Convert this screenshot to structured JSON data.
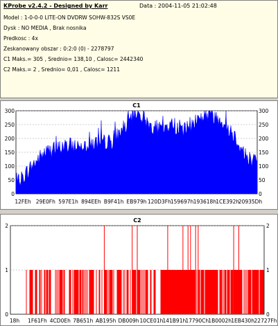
{
  "info": {
    "title": "KProbe v2.4.2 - Designed by Karr",
    "date": "Data : 2004-11-05 21:02:48",
    "lines": [
      "Model : 1-0-0-0 LITE-ON DVDRW SOHW-832S  VS0E",
      "Dysk : NO MEDIA , Brak nosnika",
      "Predkosc : 4x",
      "Zeskanowany obszar : 0:2:0 (0) - 2278797",
      "C1 Maks.= 305 , Srednio= 138,10 , Calosc= 2442340",
      "C2 Maks.= 2 , Srednio= 0,01 , Calosc= 1211"
    ]
  },
  "chart_data": [
    {
      "type": "area",
      "title": "C1",
      "color": "#0000ff",
      "ylim": [
        0,
        300
      ],
      "yticks": [
        0,
        50,
        100,
        150,
        200,
        250,
        300
      ],
      "xticklabels": [
        "12FEh",
        "29E0Fh",
        "597E1h",
        "894EEh",
        "B9F41h",
        "EB979h",
        "120D3Fh",
        "159697h",
        "193618h",
        "1CE392h",
        "20935Dh"
      ],
      "profile": {
        "x": [
          0,
          0.06,
          0.12,
          0.2,
          0.3,
          0.4,
          0.45,
          0.5,
          0.55,
          0.6,
          0.65,
          0.7,
          0.75,
          0.8,
          0.85,
          0.9,
          0.95,
          1.0
        ],
        "y": [
          30,
          95,
          150,
          170,
          180,
          190,
          240,
          300,
          250,
          230,
          250,
          230,
          270,
          290,
          270,
          220,
          140,
          110
        ]
      }
    },
    {
      "type": "bar",
      "title": "C2",
      "color": "#ff0000",
      "ylim": [
        0,
        2
      ],
      "yticks": [
        0,
        1,
        2
      ],
      "xticklabels": [
        "18h",
        "1F61Fh",
        "4CD0Eh",
        "7B651h",
        "AB195h",
        "DB009h",
        "10CE01h",
        "141B91h",
        "17790Ch",
        "1B0002h",
        "1EB430h",
        "22727Fh"
      ],
      "tall_spikes_fraction": [
        0.37,
        0.48,
        0.5,
        0.62,
        0.68,
        0.7,
        0.71,
        0.73,
        0.74,
        0.88,
        0.9
      ]
    }
  ]
}
